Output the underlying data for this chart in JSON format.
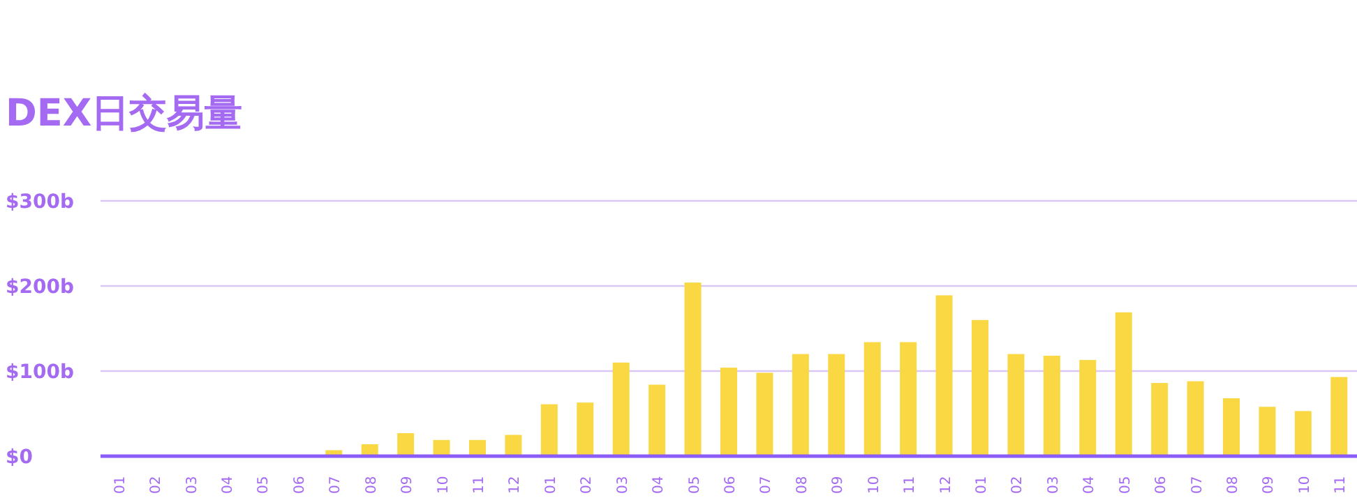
{
  "chart_data": {
    "type": "bar",
    "title": "DEX日交易量",
    "categories": [
      "01",
      "02",
      "03",
      "04",
      "05",
      "06",
      "07",
      "08",
      "09",
      "10",
      "11",
      "12",
      "01",
      "02",
      "03",
      "04",
      "05",
      "06",
      "07",
      "08",
      "09",
      "10",
      "11",
      "12",
      "01",
      "02",
      "03",
      "04",
      "05",
      "06",
      "07",
      "08",
      "09",
      "10",
      "11"
    ],
    "values": [
      0,
      0,
      0,
      0,
      0,
      0,
      7,
      14,
      27,
      19,
      19,
      25,
      61,
      63,
      110,
      84,
      204,
      104,
      98,
      120,
      120,
      134,
      134,
      189,
      160,
      120,
      118,
      113,
      169,
      86,
      88,
      68,
      58,
      53,
      93
    ],
    "color": "#f9d843",
    "ylim": [
      0,
      300
    ],
    "yticks": [
      {
        "value": 0,
        "label": "$0"
      },
      {
        "value": 100,
        "label": "$100b"
      },
      {
        "value": 200,
        "label": "$200b"
      },
      {
        "value": 300,
        "label": "$300b"
      }
    ],
    "grid": "y"
  }
}
